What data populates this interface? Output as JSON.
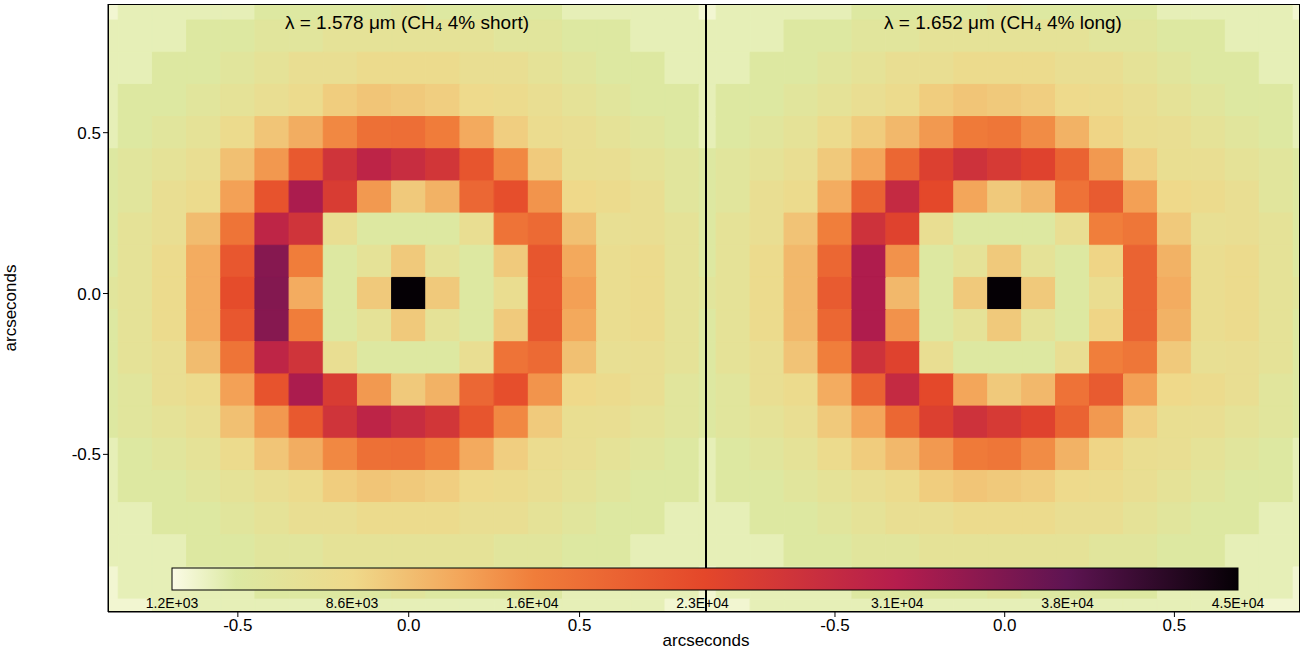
{
  "chart_data": [
    {
      "type": "heatmap",
      "title": "λ = 1.578 μm (CH₄ 4% short)",
      "xlabel": "arcseconds",
      "ylabel": "arcseconds",
      "xlim": [
        -0.88,
        0.87
      ],
      "ylim": [
        -0.99,
        0.9
      ],
      "xticks": [
        -0.5,
        {
          "value": 0,
          "label": "0.0"
        },
        0.5
      ],
      "yticks": [
        -0.5,
        {
          "value": 0,
          "label": "0.0"
        },
        0.5
      ],
      "x": [
        -0.9,
        -0.8,
        -0.7,
        -0.6,
        -0.5,
        -0.4,
        -0.3,
        -0.2,
        -0.1,
        0,
        0.1,
        0.2,
        0.3,
        0.4,
        0.5,
        0.6,
        0.7,
        0.8,
        0.9
      ],
      "y": [
        0.9,
        0.8,
        0.7,
        0.6,
        0.5,
        0.4,
        0.3,
        0.2,
        0.1,
        0,
        -0.1,
        -0.2,
        -0.3,
        -0.4,
        -0.5,
        -0.6,
        -0.7,
        -0.8,
        -0.9,
        -1.0
      ],
      "z": [
        [
          2000,
          3000,
          3000,
          3000,
          3000,
          4000,
          4000,
          4000,
          4000,
          5000,
          4000,
          4000,
          4000,
          4000,
          3000,
          3000,
          3000,
          3000,
          2000
        ],
        [
          3000,
          3000,
          3000,
          4000,
          4000,
          5000,
          5000,
          6000,
          6000,
          6000,
          6000,
          6000,
          5000,
          5000,
          4000,
          4000,
          3000,
          3000,
          3000
        ],
        [
          3000,
          3000,
          4000,
          4000,
          5000,
          6000,
          7000,
          7000,
          8000,
          8000,
          8000,
          7000,
          7000,
          6000,
          5000,
          4000,
          4000,
          3000,
          3000
        ],
        [
          3000,
          4000,
          4000,
          5000,
          6000,
          7000,
          8000,
          9700,
          10400,
          10000,
          9600,
          8300,
          8000,
          7000,
          6000,
          5000,
          4000,
          4000,
          3000
        ],
        [
          3000,
          4000,
          5000,
          6000,
          8000,
          10400,
          12400,
          15300,
          17800,
          18000,
          16200,
          12700,
          9600,
          7600,
          7000,
          6000,
          5000,
          4000,
          3000
        ],
        [
          4000,
          5000,
          6000,
          7000,
          10800,
          14100,
          20700,
          26700,
          29700,
          28000,
          26300,
          21300,
          15300,
          9900,
          7200,
          7000,
          6000,
          5000,
          4000
        ],
        [
          4000,
          5000,
          7000,
          8000,
          13400,
          21600,
          31800,
          25100,
          14000,
          10000,
          12000,
          18900,
          22200,
          14400,
          8600,
          8000,
          7000,
          5000,
          4000
        ],
        [
          4000,
          6000,
          7000,
          11100,
          17200,
          29400,
          26600,
          7000,
          4000,
          4000,
          4000,
          7000,
          17400,
          18600,
          10800,
          6900,
          7000,
          6000,
          4000
        ],
        [
          4000,
          6000,
          8000,
          12500,
          21000,
          34800,
          16100,
          4000,
          6000,
          10000,
          6000,
          4000,
          9900,
          21200,
          12800,
          7500,
          8000,
          6000,
          4000
        ],
        [
          5000,
          6000,
          8000,
          12500,
          22500,
          35000,
          12500,
          4000,
          10000,
          45000,
          10000,
          4000,
          7500,
          21000,
          13500,
          7500,
          8000,
          6000,
          5000
        ],
        [
          4000,
          6000,
          8000,
          12500,
          21000,
          34800,
          16100,
          4000,
          6000,
          10000,
          6000,
          4000,
          9900,
          21200,
          12800,
          7500,
          8000,
          6000,
          4000
        ],
        [
          4000,
          6000,
          7000,
          11100,
          17200,
          29400,
          26600,
          7000,
          4000,
          4000,
          4000,
          7000,
          17400,
          18600,
          10800,
          6900,
          7000,
          6000,
          4000
        ],
        [
          4000,
          5000,
          7000,
          8000,
          13400,
          21600,
          31800,
          25100,
          14000,
          10000,
          12000,
          18900,
          22200,
          14400,
          8600,
          8000,
          7000,
          5000,
          4000
        ],
        [
          4000,
          5000,
          6000,
          7000,
          10800,
          14100,
          20700,
          26700,
          29700,
          28000,
          26300,
          21300,
          15300,
          9900,
          7200,
          7000,
          6000,
          5000,
          4000
        ],
        [
          3000,
          4000,
          5000,
          6000,
          8000,
          10400,
          12400,
          15300,
          17800,
          18000,
          16200,
          12700,
          9600,
          7600,
          7000,
          6000,
          5000,
          4000,
          3000
        ],
        [
          3000,
          4000,
          4000,
          5000,
          6000,
          7000,
          8000,
          9700,
          10400,
          10000,
          9600,
          8300,
          8000,
          7000,
          6000,
          5000,
          4000,
          4000,
          3000
        ],
        [
          3000,
          3000,
          4000,
          4000,
          5000,
          6000,
          7000,
          7000,
          8000,
          8000,
          8000,
          7000,
          7000,
          6000,
          5000,
          4000,
          4000,
          3000,
          3000
        ],
        [
          3000,
          3000,
          3000,
          4000,
          4000,
          5000,
          5000,
          6000,
          6000,
          6000,
          6000,
          6000,
          5000,
          5000,
          4000,
          4000,
          3000,
          3000,
          3000
        ],
        [
          2000,
          3000,
          3000,
          3000,
          3000,
          4000,
          4000,
          4000,
          4000,
          5000,
          4000,
          4000,
          4000,
          4000,
          3000,
          3000,
          3000,
          3000,
          2000
        ],
        [
          2000,
          2000,
          3000,
          3000,
          3000,
          3000,
          3000,
          3000,
          3000,
          3000,
          3000,
          3000,
          3000,
          3000,
          3000,
          3000,
          3000,
          2000,
          2000
        ]
      ],
      "colorbar": {
        "range": [
          1200,
          45000
        ],
        "ticks": [
          {
            "value": 1200,
            "label": "1.2E+03"
          },
          {
            "value": 8600,
            "label": "8.6E+03"
          },
          {
            "value": 16000,
            "label": "1.6E+04"
          },
          {
            "value": 23000,
            "label": "2.3E+04"
          },
          {
            "value": 31000,
            "label": "3.1E+04"
          },
          {
            "value": 38000,
            "label": "3.8E+04"
          },
          {
            "value": 45000,
            "label": "4.5E+04"
          }
        ]
      }
    },
    {
      "type": "heatmap",
      "title": "λ = 1.652 μm (CH₄ 4% long)",
      "tick_labels": "x",
      "xlim": [
        -0.88,
        0.87
      ],
      "ylim": [
        -0.99,
        0.9
      ],
      "xticks": [
        -0.5,
        {
          "value": 0,
          "label": "0.0"
        },
        0.5
      ],
      "yticks": [
        -0.5,
        {
          "value": 0,
          "label": "0.0"
        },
        0.5
      ],
      "x": [
        -0.9,
        -0.8,
        -0.7,
        -0.6,
        -0.5,
        -0.4,
        -0.3,
        -0.2,
        -0.1,
        0,
        0.1,
        0.2,
        0.3,
        0.4,
        0.5,
        0.6,
        0.7,
        0.8,
        0.9
      ],
      "y": [
        0.9,
        0.8,
        0.7,
        0.6,
        0.5,
        0.4,
        0.3,
        0.2,
        0.1,
        0,
        -0.1,
        -0.2,
        -0.3,
        -0.4,
        -0.5,
        -0.6,
        -0.7,
        -0.8,
        -0.9,
        -1.0
      ],
      "z": [
        [
          2000,
          3000,
          3000,
          3000,
          3000,
          4000,
          4000,
          4000,
          4000,
          5000,
          4000,
          4000,
          4000,
          4000,
          3000,
          3000,
          3000,
          3000,
          2000
        ],
        [
          3000,
          3000,
          3000,
          4000,
          4000,
          5000,
          5000,
          6000,
          6000,
          6000,
          6000,
          6000,
          5000,
          5000,
          4000,
          4000,
          3000,
          3000,
          3000
        ],
        [
          3000,
          3000,
          4000,
          4000,
          5000,
          6000,
          7000,
          7000,
          8000,
          8000,
          8000,
          7000,
          7000,
          6000,
          5000,
          4000,
          4000,
          3000,
          3000
        ],
        [
          3000,
          4000,
          4000,
          5000,
          6000,
          7000,
          8000,
          9700,
          10400,
          10000,
          9600,
          8300,
          8000,
          7000,
          6000,
          5000,
          4000,
          4000,
          3000
        ],
        [
          3000,
          4000,
          5000,
          6000,
          8000,
          9800,
          11500,
          14000,
          16500,
          17000,
          15000,
          12000,
          9000,
          7400,
          7000,
          6000,
          5000,
          4000,
          3000
        ],
        [
          4000,
          5000,
          6000,
          7000,
          10000,
          13000,
          19000,
          24500,
          27000,
          25500,
          24000,
          19500,
          14000,
          9500,
          7200,
          7000,
          6000,
          5000,
          4000
        ],
        [
          4000,
          5000,
          7000,
          8000,
          12500,
          19500,
          28500,
          23000,
          13000,
          10000,
          11500,
          17500,
          20500,
          13500,
          8600,
          8000,
          7000,
          5000,
          4000
        ],
        [
          4000,
          6000,
          7000,
          10500,
          16000,
          27000,
          24000,
          7000,
          4000,
          4000,
          4000,
          7000,
          16000,
          17000,
          10000,
          6900,
          7000,
          6000,
          4000
        ],
        [
          4000,
          6000,
          8000,
          11500,
          19000,
          31500,
          14500,
          4000,
          6000,
          10000,
          6000,
          4000,
          9000,
          19500,
          12000,
          7500,
          8000,
          6000,
          4000
        ],
        [
          5000,
          6000,
          8000,
          11500,
          20500,
          31500,
          11500,
          4000,
          10000,
          45000,
          10000,
          4000,
          7500,
          19500,
          12500,
          7500,
          8000,
          6000,
          5000
        ],
        [
          4000,
          6000,
          8000,
          11500,
          19000,
          31500,
          14500,
          4000,
          6000,
          10000,
          6000,
          4000,
          9000,
          19500,
          12000,
          7500,
          8000,
          6000,
          4000
        ],
        [
          4000,
          6000,
          7000,
          10500,
          16000,
          27000,
          24000,
          7000,
          4000,
          4000,
          4000,
          7000,
          16000,
          17000,
          10000,
          6900,
          7000,
          6000,
          4000
        ],
        [
          4000,
          5000,
          7000,
          8000,
          12500,
          19500,
          28500,
          23000,
          13000,
          10000,
          11500,
          17500,
          20500,
          13500,
          8600,
          8000,
          7000,
          5000,
          4000
        ],
        [
          4000,
          5000,
          6000,
          7000,
          10000,
          13000,
          19000,
          24500,
          27000,
          25500,
          24000,
          19500,
          14000,
          9500,
          7200,
          7000,
          6000,
          5000,
          4000
        ],
        [
          3000,
          4000,
          5000,
          6000,
          8000,
          9800,
          11500,
          14000,
          16500,
          17000,
          15000,
          12000,
          9000,
          7400,
          7000,
          6000,
          5000,
          4000,
          3000
        ],
        [
          3000,
          4000,
          4000,
          5000,
          6000,
          7000,
          8000,
          9700,
          10400,
          10000,
          9600,
          8300,
          8000,
          7000,
          6000,
          5000,
          4000,
          4000,
          3000
        ],
        [
          3000,
          3000,
          4000,
          4000,
          5000,
          6000,
          7000,
          7000,
          8000,
          8000,
          8000,
          7000,
          7000,
          6000,
          5000,
          4000,
          4000,
          3000,
          3000
        ],
        [
          3000,
          3000,
          3000,
          4000,
          4000,
          5000,
          5000,
          6000,
          6000,
          6000,
          6000,
          6000,
          5000,
          5000,
          4000,
          4000,
          3000,
          3000,
          3000
        ],
        [
          2000,
          3000,
          3000,
          3000,
          3000,
          4000,
          4000,
          4000,
          4000,
          5000,
          4000,
          4000,
          4000,
          4000,
          3000,
          3000,
          3000,
          3000,
          2000
        ],
        [
          2000,
          2000,
          3000,
          3000,
          3000,
          3000,
          3000,
          3000,
          3000,
          3000,
          3000,
          3000,
          3000,
          3000,
          3000,
          3000,
          3000,
          2000,
          2000
        ]
      ]
    }
  ]
}
